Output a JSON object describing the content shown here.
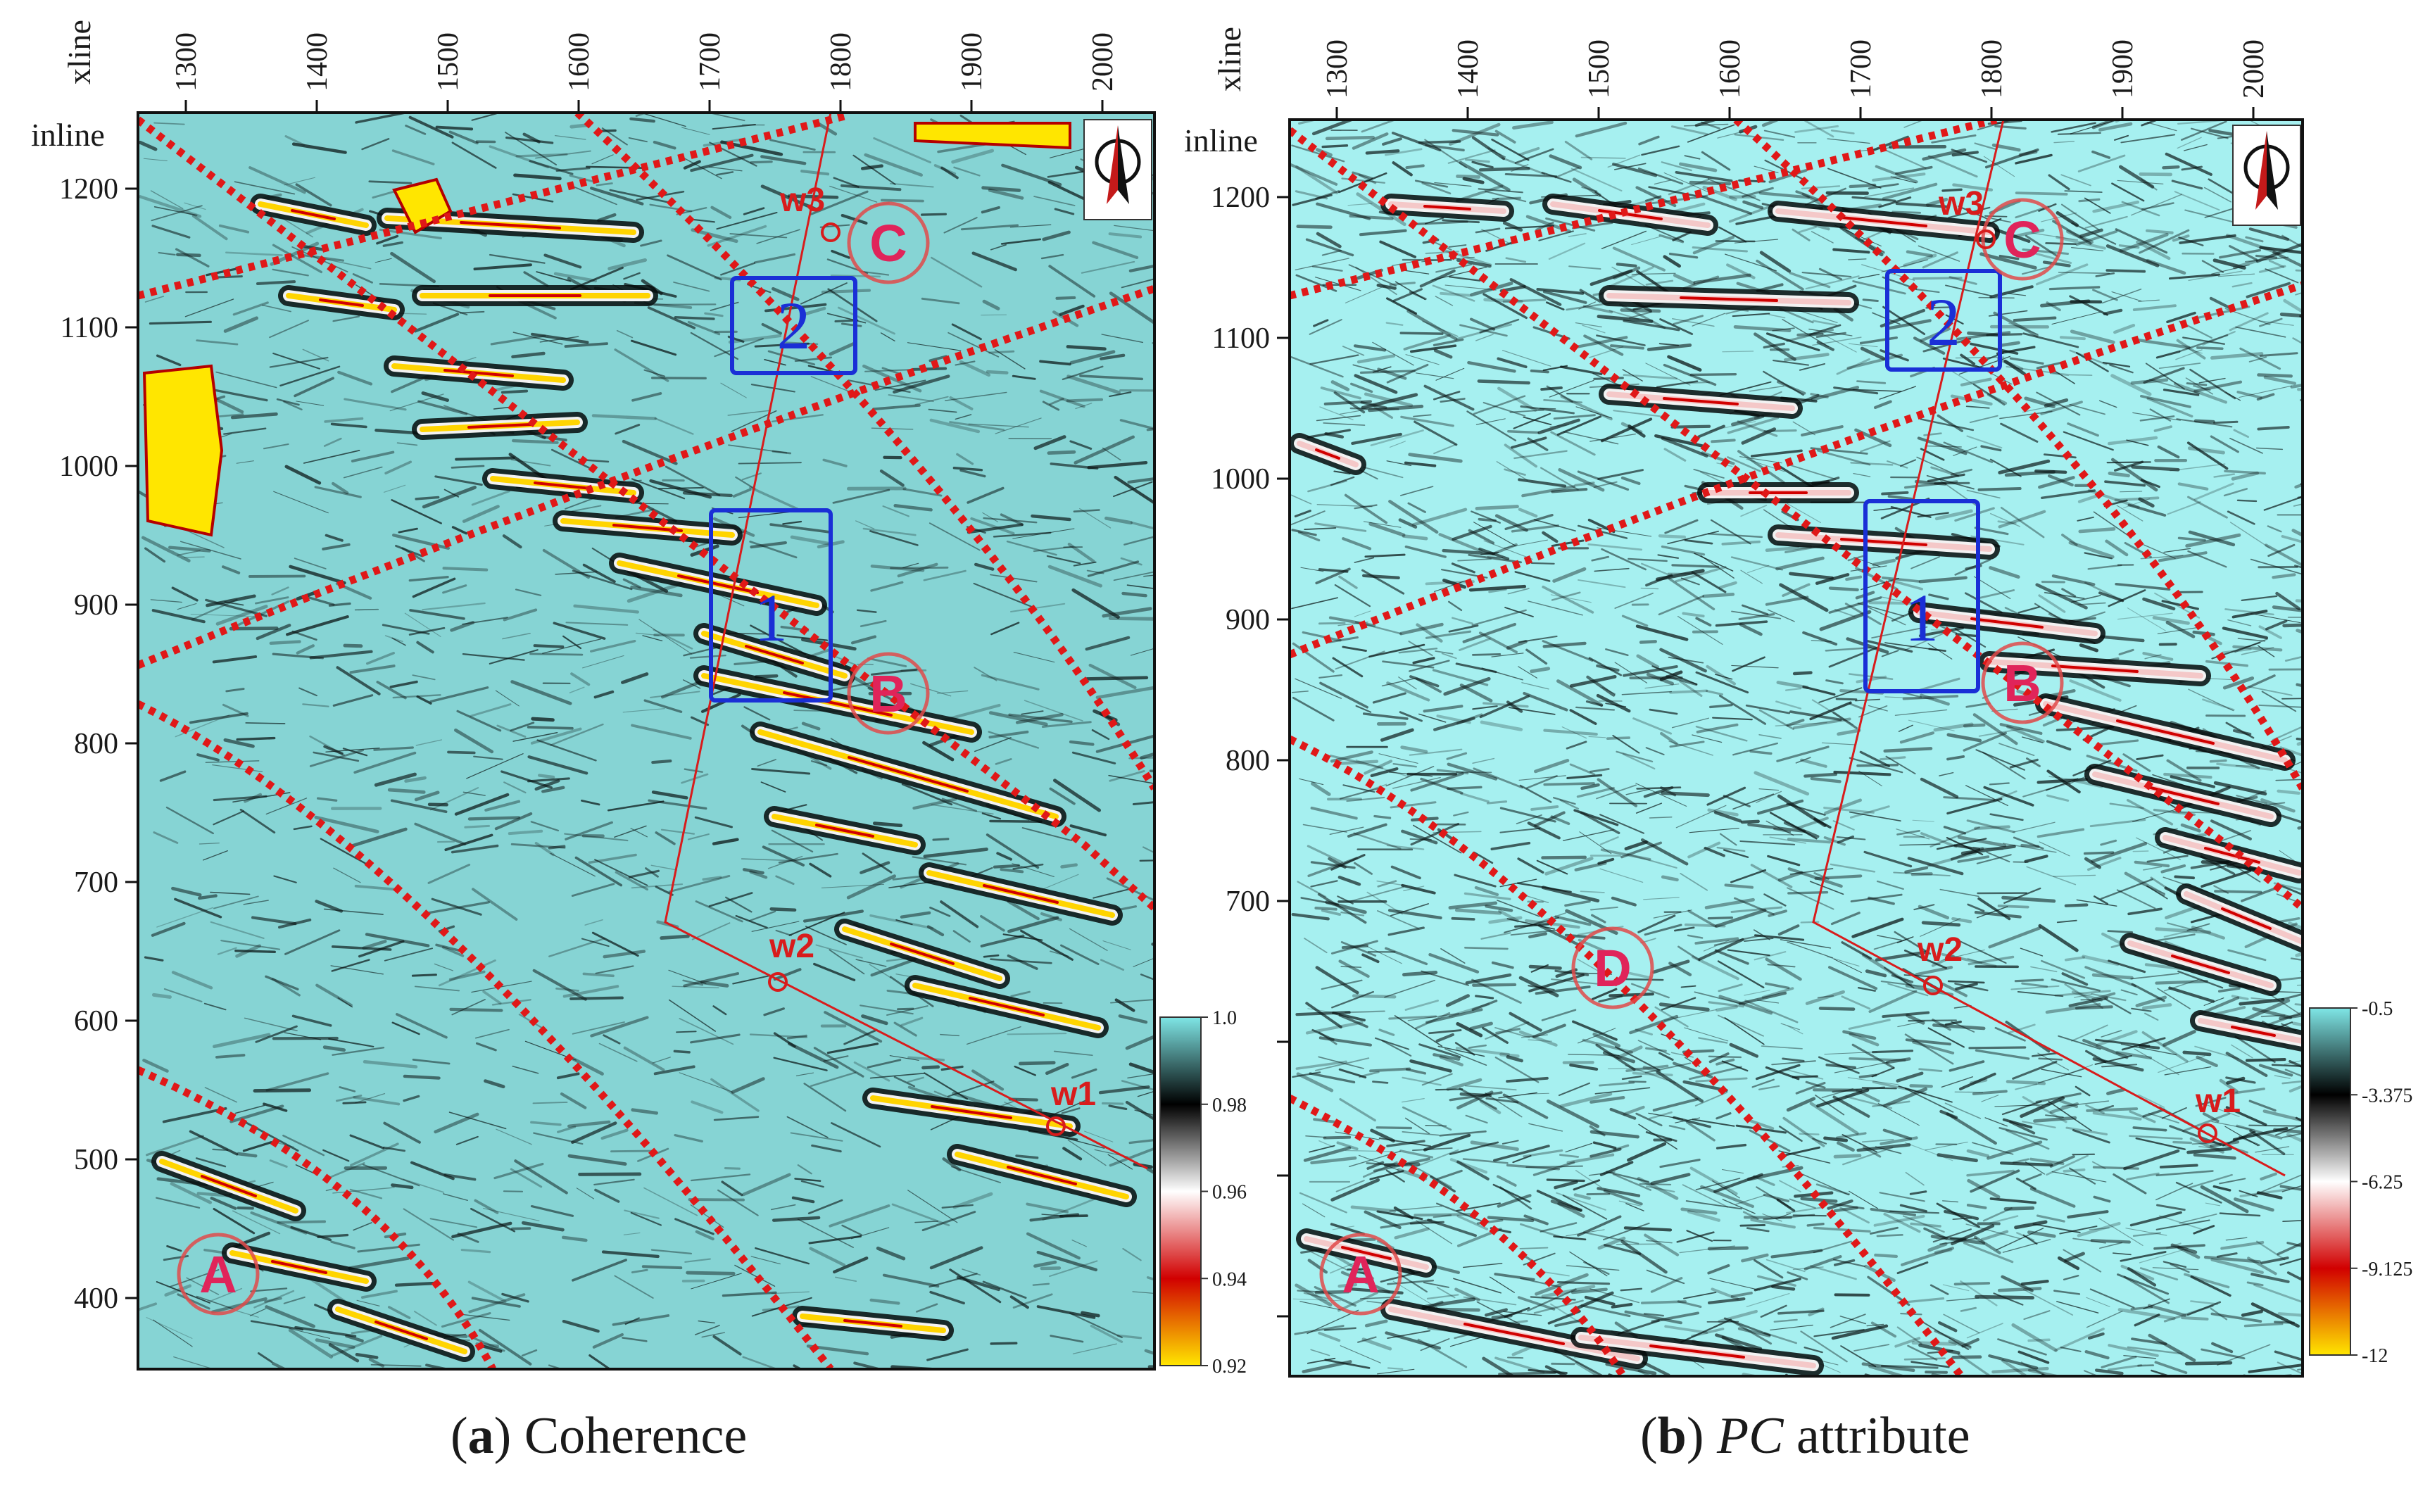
{
  "figure": {
    "panels": [
      {
        "id": "a",
        "caption_letter": "a",
        "caption_text": "Coherence",
        "caption_italic": "",
        "caption_rest": "",
        "xline_label": "xline",
        "inline_label": "inline",
        "xline_ticks": [
          "1300",
          "1400",
          "1500",
          "1600",
          "1700",
          "1800",
          "1900",
          "2000"
        ],
        "inline_ticks": [
          "1200",
          "1100",
          "1000",
          "900",
          "800",
          "700",
          "600",
          "500",
          "400"
        ],
        "colorbar": {
          "labels": [
            "1.0",
            "0.98",
            "0.96",
            "0.94",
            "0.92"
          ],
          "stops": [
            "#7fe6e6",
            "#000000",
            "#ffffff",
            "#d10000",
            "#ffe600"
          ]
        },
        "wells": [
          "w1",
          "w2",
          "w3"
        ],
        "zones": [
          "A",
          "B",
          "C"
        ],
        "boxes": [
          "1",
          "2"
        ],
        "background_color": "#86d4d4"
      },
      {
        "id": "b",
        "caption_letter": "b",
        "caption_text": "",
        "caption_italic": "PC",
        "caption_rest": "attribute",
        "xline_label": "xline",
        "inline_label": "inline",
        "xline_ticks": [
          "1300",
          "1400",
          "1500",
          "1600",
          "1700",
          "1800",
          "1900",
          "2000"
        ],
        "inline_ticks": [
          "1200",
          "1100",
          "1000",
          "900",
          "800",
          "700"
        ],
        "colorbar": {
          "labels": [
            "-0.5",
            "-3.375",
            "-6.25",
            "-9.125",
            "-12"
          ],
          "stops": [
            "#7fe6e6",
            "#000000",
            "#ffffff",
            "#d10000",
            "#ffe600"
          ]
        },
        "wells": [
          "w1",
          "w2",
          "w3"
        ],
        "zones": [
          "A",
          "B",
          "C",
          "D"
        ],
        "boxes": [
          "1",
          "2"
        ],
        "background_color": "#a6f0f0"
      }
    ],
    "colors": {
      "fault_line": "#e01818",
      "zone_circle": "#e04a4a",
      "zone_letter": "#e0245a",
      "box": "#1a2fd6",
      "well_label": "#d81c1c",
      "trajectory": "#d81c1c"
    },
    "north_arrow_icon": "north-arrow-icon"
  }
}
